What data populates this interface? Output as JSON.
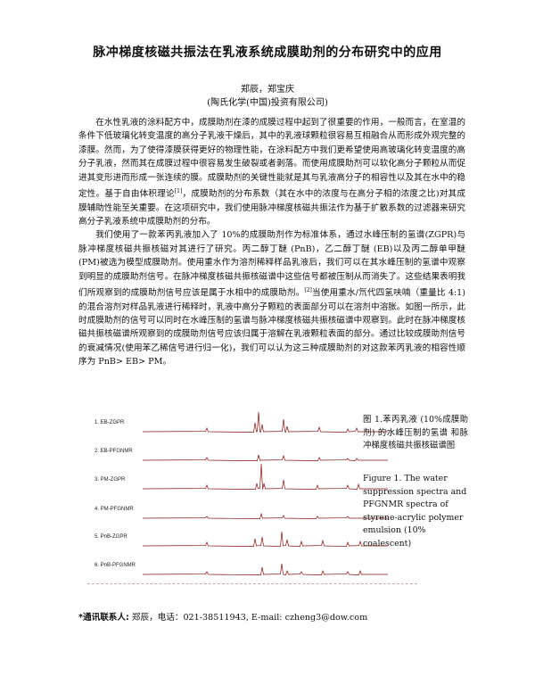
{
  "header": {
    "title": "脉冲梯度核磁共振法在乳液系统成膜助剂的分布研究中的应用",
    "authors": "郑辰，郑宝庆",
    "affiliation": "(陶氏化学(中国)投资有限公司)"
  },
  "body": {
    "p1_a": "在水性乳液的涂料配方中，成膜助剂在漆的成膜过程中起到了很重要的作用，一般而言，在室温的条件下低玻璃化转变温度的高分子乳液干燥后，其中的乳液球颗粒很容易互相融合从而形成外观完整的漆膜。然而，为了使得漆膜获得更好的物理性能，在涂料配方中我们更希望使用高玻璃化转变温度的高分子乳液，然而其在成膜过程中很容易发生破裂或者剥落。而使用成膜助剂可以软化高分子颗粒从而促进其变形进而形成一张连续的膜。成膜助剂的关键性能就是其与乳液高分子的相容性以及其在水中的稳定性。基于自由体积理论",
    "p1_ref": "[1]",
    "p1_b": "，成膜助剂的分布系数（其在水中的浓度与在高分子相的浓度之比)对其成膜辅助性能至关重要。在这项研究中，我们使用脉冲梯度核磁共振法作为基于扩散系数的过滤器来研究高分子乳液系统中成膜助剂的分布。",
    "p2_a": "我们使用了一款苯丙乳液加入了 10%的成膜助剂作为标准体系，通过水峰压制的氢谱(ZGPR)与脉冲梯度核磁共振核磁对其进行了研究。丙二醇丁醚 (PnB)，乙二醇丁醚 (EB)以及丙二醇单甲醚 (PM)被选为模型成膜助剂。使用重水作为溶剂稀释样品乳液后，我们可以在其水峰压制的氢谱中观察到明显的成膜助剂信号。在脉冲梯度核磁共振核磁谱中这些信号都被压制从而消失了。这些结果表明我们所观察到的成膜助剂信号应该是属于水相中的成膜助剂。",
    "p2_ref": "[2]",
    "p2_b": "当使用重水/氘代四氢呋喃（重量比 4:1)的混合溶剂对样品乳液进行稀释时，乳液中高分子颗粒的表面部分可以在溶剂中溶胀。如图一所示，此时成膜助剂的信号可以同时在水峰压制的氢谱与脉冲梯度核磁共振核磁谱中观察到。此时在脉冲梯度核磁共振核磁谱所观察到的成膜助剂信号应该归属于溶解在乳液颗粒表面的部分。通过比较成膜助剂信号的衰减情况(使用苯乙稀信号进行归一化)，我们可以认为这三种成膜助剂的对这款苯丙乳液的相容性顺序为 PnB> EB> PM。"
  },
  "figure": {
    "trace_labels": [
      "1. EB-ZGPR",
      "2. EB-PFGNMR",
      "3. PM-ZGPR",
      "4. PM-PFGNMR",
      "5. PnB-ZGPR",
      "6. PnB-PFGNMR"
    ],
    "trace_color": "#8b1010",
    "caption_cn": "图 1.苯丙乳液 (10%成膜助剂) 的水峰压制的氢谱 和脉冲梯度核磁共振核磁谱图",
    "caption_en": "Figure 1. The water suppression spectra and PFGNMR spectra of styrene-acrylic polymer emulsion (10% coalescent)"
  },
  "contact": {
    "label": "*通讯联系人:",
    "text": " 郑辰，电话：021-38511943, E-mail: czheng3@dow.com"
  }
}
